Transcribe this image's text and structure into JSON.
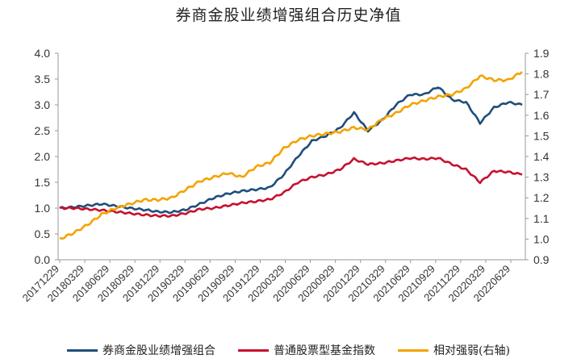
{
  "chart_data": {
    "type": "line",
    "title": "券商金股业绩增强组合历史净值",
    "y_left": {
      "ylim": [
        0.0,
        4.0
      ],
      "ticks": [
        "4.0",
        "3.5",
        "3.0",
        "2.5",
        "2.0",
        "1.5",
        "1.0",
        "0.5",
        "0.0"
      ]
    },
    "y_right": {
      "ylim": [
        0.9,
        1.9
      ],
      "ticks": [
        "1.9",
        "1.8",
        "1.7",
        "1.6",
        "1.5",
        "1.4",
        "1.3",
        "1.2",
        "1.1",
        "1.0",
        "0.9"
      ]
    },
    "x_ticks": [
      "20171229",
      "20180329",
      "20180629",
      "20180929",
      "20181229",
      "20190329",
      "20190629",
      "20190929",
      "20191229",
      "20200329",
      "20200629",
      "20200929",
      "20201229",
      "20210329",
      "20210629",
      "20210929",
      "20211229",
      "20220329",
      "20220629"
    ],
    "grid": false,
    "legend_position": "bottom",
    "series": [
      {
        "name": "券商金股业绩增强组合",
        "axis": "left",
        "color": "#1f4e79",
        "values": [
          1.0,
          1.02,
          1.05,
          1.08,
          1.04,
          1.0,
          0.97,
          0.93,
          0.92,
          0.97,
          1.08,
          1.2,
          1.28,
          1.33,
          1.36,
          1.4,
          1.65,
          2.0,
          2.3,
          2.4,
          2.55,
          2.85,
          2.5,
          2.7,
          3.0,
          3.2,
          3.2,
          3.35,
          3.1,
          3.05,
          2.65,
          2.95,
          3.05,
          3.0
        ]
      },
      {
        "name": "普通股票型基金指数",
        "axis": "left",
        "color": "#c8102e",
        "values": [
          1.0,
          1.0,
          0.98,
          0.96,
          0.93,
          0.9,
          0.87,
          0.85,
          0.85,
          0.9,
          0.98,
          1.0,
          1.05,
          1.1,
          1.13,
          1.17,
          1.3,
          1.5,
          1.6,
          1.65,
          1.75,
          1.95,
          1.85,
          1.87,
          1.92,
          1.97,
          1.95,
          1.97,
          1.85,
          1.75,
          1.5,
          1.72,
          1.7,
          1.65
        ]
      },
      {
        "name": "相对强弱(右轴)",
        "axis": "right",
        "color": "#f4a300",
        "values": [
          1.0,
          1.03,
          1.07,
          1.12,
          1.15,
          1.17,
          1.19,
          1.19,
          1.2,
          1.24,
          1.28,
          1.3,
          1.32,
          1.3,
          1.35,
          1.37,
          1.44,
          1.48,
          1.5,
          1.51,
          1.52,
          1.54,
          1.53,
          1.58,
          1.61,
          1.65,
          1.67,
          1.69,
          1.7,
          1.73,
          1.79,
          1.77,
          1.77,
          1.81
        ]
      }
    ]
  }
}
